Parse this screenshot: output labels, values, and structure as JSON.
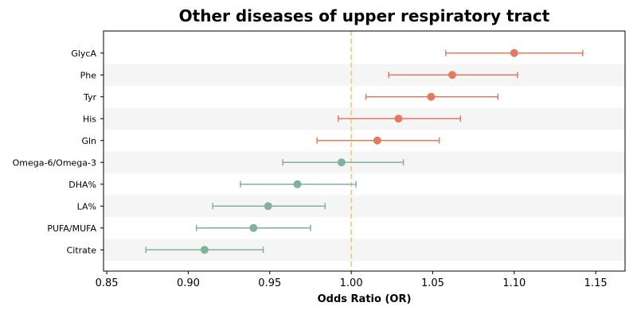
{
  "chart_data": {
    "type": "forest",
    "title": "Other diseases of upper respiratory tract",
    "xlabel": "Odds Ratio (OR)",
    "ylabel": "",
    "xlim": [
      0.848,
      1.168
    ],
    "x_ticks": [
      "0.85",
      "0.90",
      "0.95",
      "1.00",
      "1.05",
      "1.10",
      "1.15"
    ],
    "x_tick_values": [
      0.85,
      0.9,
      0.95,
      1.0,
      1.05,
      1.1,
      1.15
    ],
    "reference_line": 1.0,
    "reference_line_style": "dashed",
    "grid": false,
    "row_banding": true,
    "colors": {
      "positive": "#E07B5F",
      "negative": "#81B29A",
      "reference": "#F2CC8F",
      "band": "#F5F5F5"
    },
    "categories": [
      "GlycA",
      "Phe",
      "Tyr",
      "His",
      "Gln",
      "Omega-6/Omega-3",
      "DHA%",
      "LA%",
      "PUFA/MUFA",
      "Citrate"
    ],
    "or": [
      1.1,
      1.062,
      1.049,
      1.029,
      1.016,
      0.994,
      0.967,
      0.949,
      0.94,
      0.91
    ],
    "ci_lower": [
      1.058,
      1.023,
      1.009,
      0.992,
      0.979,
      0.958,
      0.932,
      0.915,
      0.905,
      0.874
    ],
    "ci_upper": [
      1.142,
      1.102,
      1.09,
      1.067,
      1.054,
      1.032,
      1.003,
      0.984,
      0.975,
      0.946
    ]
  }
}
